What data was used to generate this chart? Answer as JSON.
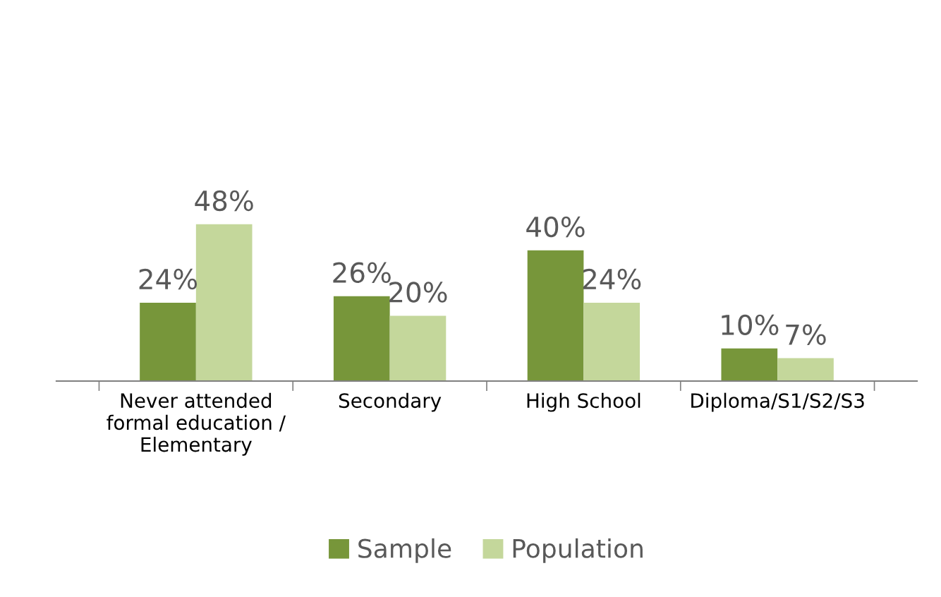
{
  "chart_data": {
    "type": "bar",
    "categories": [
      "Never attended formal education / Elementary",
      "Secondary",
      "High School",
      "Diploma/S1/S2/S3"
    ],
    "series": [
      {
        "name": "Sample",
        "color": "#77963a",
        "values": [
          24,
          26,
          40,
          10
        ],
        "value_labels": [
          "24%",
          "26%",
          "40%",
          "10%"
        ]
      },
      {
        "name": "Population",
        "color": "#c4d79b",
        "values": [
          48,
          20,
          24,
          7
        ],
        "value_labels": [
          "48%",
          "20%",
          "24%",
          "7%"
        ]
      }
    ],
    "legend": "bottom",
    "grid": false
  }
}
